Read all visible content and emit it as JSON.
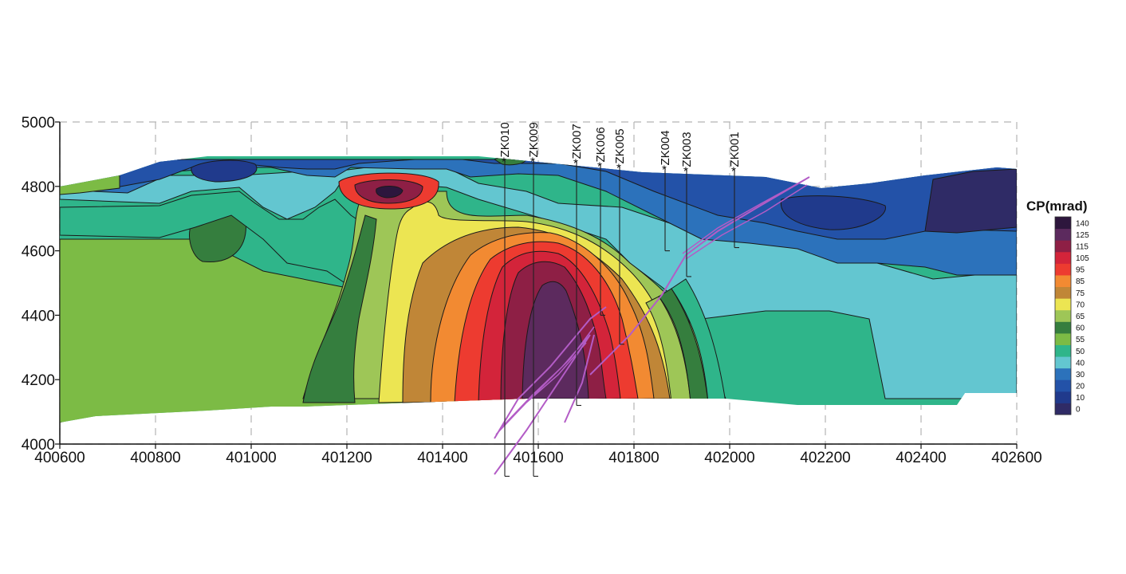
{
  "chart_data": {
    "type": "heatmap",
    "title": "",
    "xlabel": "",
    "ylabel": "",
    "xlim": [
      400600,
      402600
    ],
    "ylim": [
      4000,
      5000
    ],
    "x_ticks": [
      "400600",
      "400800",
      "401000",
      "401200",
      "401400",
      "401600",
      "401800",
      "402000",
      "402200",
      "402400",
      "402600"
    ],
    "y_ticks": [
      "4000",
      "4200",
      "4400",
      "4600",
      "4800",
      "5000"
    ],
    "grid": true,
    "colorbar": {
      "title": "CP(mrad)",
      "levels": [
        "0",
        "10",
        "20",
        "30",
        "40",
        "50",
        "55",
        "60",
        "65",
        "70",
        "75",
        "85",
        "95",
        "105",
        "115",
        "125",
        "140"
      ],
      "colors": [
        "#2f2b66",
        "#203a8c",
        "#2352a8",
        "#2c72bb",
        "#63c6d0",
        "#2fb58a",
        "#7cbb45",
        "#357e3e",
        "#9ec657",
        "#ece552",
        "#c08637",
        "#f28a32",
        "#ed3b30",
        "#d3243a",
        "#8e1f45",
        "#5c2a5e",
        "#2d163d"
      ]
    },
    "drill_holes": [
      {
        "name": "ZK010",
        "x": 401530,
        "top": 4885,
        "bottom": 3900
      },
      {
        "name": "ZK009",
        "x": 401590,
        "top": 4885,
        "bottom": 3900
      },
      {
        "name": "ZK007",
        "x": 401680,
        "top": 4880,
        "bottom": 4120
      },
      {
        "name": "ZK006",
        "x": 401730,
        "top": 4870,
        "bottom": 4400
      },
      {
        "name": "ZK005",
        "x": 401770,
        "top": 4865,
        "bottom": 4310
      },
      {
        "name": "ZK004",
        "x": 401865,
        "top": 4860,
        "bottom": 4600
      },
      {
        "name": "ZK003",
        "x": 401910,
        "top": 4855,
        "bottom": 4520
      },
      {
        "name": "ZK001",
        "x": 402010,
        "top": 4855,
        "bottom": 4610
      }
    ]
  }
}
